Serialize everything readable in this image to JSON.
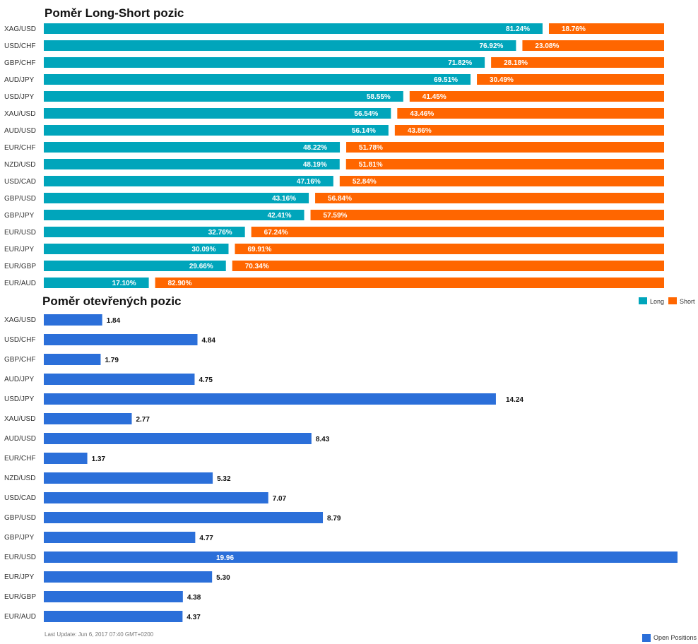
{
  "colors": {
    "long": "#00a5bb",
    "short": "#ff6600",
    "open_positions": "#2b6fd9"
  },
  "footer": "Last Update: Jun 6, 2017 07:40 GMT+0200",
  "chart_data": [
    {
      "type": "bar",
      "stacked": true,
      "orientation": "horizontal",
      "title": "Poměr Long-Short pozic",
      "categories": [
        "XAG/USD",
        "USD/CHF",
        "GBP/CHF",
        "AUD/JPY",
        "USD/JPY",
        "XAU/USD",
        "AUD/USD",
        "EUR/CHF",
        "NZD/USD",
        "USD/CAD",
        "GBP/USD",
        "GBP/JPY",
        "EUR/USD",
        "EUR/JPY",
        "EUR/GBP",
        "EUR/AUD"
      ],
      "series": [
        {
          "name": "Long",
          "values": [
            81.24,
            76.92,
            71.82,
            69.51,
            58.55,
            56.54,
            56.14,
            48.22,
            48.19,
            47.16,
            43.16,
            42.41,
            32.76,
            30.09,
            29.66,
            17.1
          ],
          "labels": [
            "81.24%",
            "76.92%",
            "71.82%",
            "69.51%",
            "58.55%",
            "56.54%",
            "56.14%",
            "48.22%",
            "48.19%",
            "47.16%",
            "43.16%",
            "42.41%",
            "32.76%",
            "30.09%",
            "29.66%",
            "17.10%"
          ]
        },
        {
          "name": "Short",
          "values": [
            18.76,
            23.08,
            28.18,
            30.49,
            41.45,
            43.46,
            43.86,
            51.78,
            51.81,
            52.84,
            56.84,
            57.59,
            67.24,
            69.91,
            70.34,
            82.9
          ],
          "labels": [
            "18.76%",
            "23.08%",
            "28.18%",
            "30.49%",
            "41.45%",
            "43.46%",
            "43.86%",
            "51.78%",
            "51.81%",
            "52.84%",
            "56.84%",
            "57.59%",
            "67.24%",
            "69.91%",
            "70.34%",
            "82.90%"
          ]
        }
      ],
      "legend_position": "bottom-right",
      "grid": false
    },
    {
      "type": "bar",
      "orientation": "horizontal",
      "title": "Poměr otevřených pozic",
      "categories": [
        "XAG/USD",
        "USD/CHF",
        "GBP/CHF",
        "AUD/JPY",
        "USD/JPY",
        "XAU/USD",
        "AUD/USD",
        "EUR/CHF",
        "NZD/USD",
        "USD/CAD",
        "GBP/USD",
        "GBP/JPY",
        "EUR/USD",
        "EUR/JPY",
        "EUR/GBP",
        "EUR/AUD"
      ],
      "series": [
        {
          "name": "Open Positions",
          "values": [
            1.84,
            4.84,
            1.79,
            4.75,
            14.24,
            2.77,
            8.43,
            1.37,
            5.32,
            7.07,
            8.79,
            4.77,
            19.96,
            5.3,
            4.38,
            4.37
          ],
          "labels": [
            "1.84",
            "4.84",
            "1.79",
            "4.75",
            "14.24",
            "2.77",
            "8.43",
            "1.37",
            "5.32",
            "7.07",
            "8.79",
            "4.77",
            "19.96",
            "5.30",
            "4.38",
            "4.37"
          ]
        }
      ],
      "xlim": [
        0,
        19.96
      ],
      "legend_position": "bottom-right",
      "grid": false
    }
  ]
}
